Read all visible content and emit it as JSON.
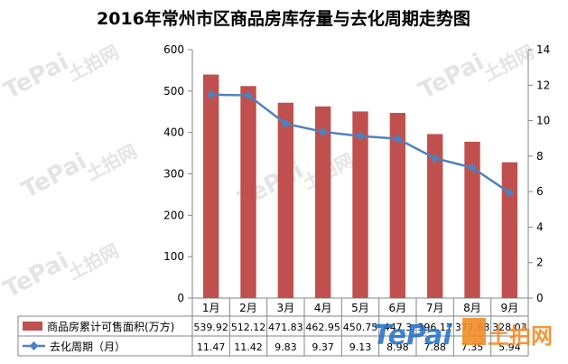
{
  "chart_data": {
    "type": "bar+line",
    "title": "2016年常州市区商品房库存量与去化周期走势图",
    "categories": [
      "1月",
      "2月",
      "3月",
      "4月",
      "5月",
      "6月",
      "7月",
      "8月",
      "9月"
    ],
    "series": [
      {
        "name": "商品房累计可售面积(万方)",
        "type": "bar",
        "axis": "left",
        "color": "#c0504d",
        "values": [
          539.92,
          512.12,
          471.83,
          462.95,
          450.75,
          447.3,
          396.17,
          377.68,
          328.03
        ],
        "labels": [
          "539.92",
          "512.12",
          "471.83",
          "462.95",
          "450.75",
          "447.3",
          "396.17",
          "377.68",
          "328.03"
        ]
      },
      {
        "name": "去化周期（月）",
        "type": "line",
        "axis": "right",
        "color": "#4f81bd",
        "values": [
          11.47,
          11.42,
          9.83,
          9.37,
          9.13,
          8.98,
          7.88,
          7.35,
          5.94
        ],
        "labels": [
          "11.47",
          "11.42",
          "9.83",
          "9.37",
          "9.13",
          "8.98",
          "7.88",
          "7.35",
          "5.94"
        ]
      }
    ],
    "y_left": {
      "min": 0,
      "max": 600,
      "ticks": [
        "0",
        "100",
        "200",
        "300",
        "400",
        "500",
        "600"
      ]
    },
    "y_right": {
      "min": 0,
      "max": 14,
      "ticks": [
        "0",
        "2",
        "4",
        "6",
        "8",
        "10",
        "12",
        "14"
      ]
    },
    "grid": false,
    "legend": "data-table"
  },
  "watermark": {
    "brand": "TePai",
    "text": "土拍网"
  },
  "colors": {
    "bar": "#c0504d",
    "line": "#4f81bd",
    "axis": "#868686",
    "watermark": "#d9d9d9",
    "watermark_accent": "#1f6ec6",
    "watermark_orange": "#f28c28"
  }
}
